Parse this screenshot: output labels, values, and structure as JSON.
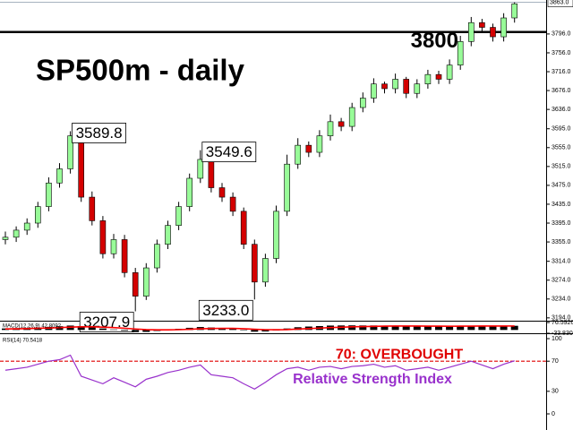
{
  "chart_data": [
    {
      "type": "candlestick",
      "title": "SP500m - daily",
      "open": [
        3360,
        3365,
        3380,
        3395,
        3430,
        3480,
        3510,
        3580,
        3450,
        3400,
        3330,
        3360,
        3290,
        3240,
        3300,
        3350,
        3390,
        3430,
        3490,
        3530,
        3470,
        3450,
        3420,
        3350,
        3270,
        3320,
        3420,
        3520,
        3560,
        3545,
        3580,
        3610,
        3600,
        3640,
        3660,
        3690,
        3680,
        3700,
        3670,
        3690,
        3710,
        3700,
        3730,
        3780,
        3820,
        3810,
        3790,
        3830
      ],
      "high": [
        3377,
        3388,
        3405,
        3440,
        3492,
        3522,
        3589.8,
        3585,
        3462,
        3410,
        3372,
        3370,
        3300,
        3310,
        3360,
        3400,
        3440,
        3500,
        3549.6,
        3535,
        3480,
        3460,
        3428,
        3360,
        3330,
        3432,
        3540,
        3575,
        3568,
        3592,
        3625,
        3618,
        3650,
        3672,
        3702,
        3695,
        3712,
        3705,
        3700,
        3720,
        3718,
        3742,
        3792,
        3832,
        3828,
        3818,
        3840,
        3863
      ],
      "low": [
        3350,
        3355,
        3370,
        3385,
        3420,
        3470,
        3500,
        3440,
        3390,
        3320,
        3320,
        3280,
        3207.9,
        3232,
        3290,
        3340,
        3380,
        3420,
        3480,
        3460,
        3440,
        3410,
        3340,
        3233.0,
        3260,
        3310,
        3410,
        3510,
        3535,
        3535,
        3570,
        3590,
        3590,
        3630,
        3650,
        3670,
        3670,
        3660,
        3660,
        3680,
        3690,
        3690,
        3720,
        3770,
        3800,
        3780,
        3780,
        3820
      ],
      "close": [
        3365,
        3380,
        3395,
        3430,
        3480,
        3510,
        3580,
        3450,
        3400,
        3330,
        3360,
        3290,
        3240,
        3300,
        3350,
        3390,
        3430,
        3490,
        3530,
        3470,
        3450,
        3420,
        3350,
        3270,
        3320,
        3420,
        3520,
        3560,
        3545,
        3580,
        3610,
        3600,
        3640,
        3660,
        3690,
        3680,
        3700,
        3670,
        3690,
        3710,
        3700,
        3730,
        3780,
        3820,
        3810,
        3790,
        3830,
        3860
      ],
      "up_color": "#98fb98",
      "down_color": "#d40000",
      "ylim": [
        3188,
        3868
      ],
      "yticks": [
        {
          "value": 3796,
          "label": "3796.0"
        },
        {
          "value": 3756,
          "label": "3756.0"
        },
        {
          "value": 3716,
          "label": "3716.0"
        },
        {
          "value": 3676,
          "label": "3676.0"
        },
        {
          "value": 3636,
          "label": "3636.0"
        },
        {
          "value": 3595,
          "label": "3595.0"
        },
        {
          "value": 3555,
          "label": "3555.0"
        },
        {
          "value": 3515,
          "label": "3515.0"
        },
        {
          "value": 3475,
          "label": "3475.0"
        },
        {
          "value": 3435,
          "label": "3435.0"
        },
        {
          "value": 3395,
          "label": "3395.0"
        },
        {
          "value": 3355,
          "label": "3355.0"
        },
        {
          "value": 3314,
          "label": "3314.0"
        },
        {
          "value": 3274,
          "label": "3274.0"
        },
        {
          "value": 3234,
          "label": "3234.0"
        },
        {
          "value": 3194,
          "label": "3194.0"
        }
      ],
      "price": {
        "value": 3863,
        "label": "3863.0"
      },
      "levels": [
        {
          "value": 3800,
          "label": "3800"
        }
      ],
      "annotations": [
        {
          "value": 3589.8,
          "label": "3589.8"
        },
        {
          "value": 3549.6,
          "label": "3549.6"
        },
        {
          "value": 3207.9,
          "label": "3207.9"
        },
        {
          "value": 3233.0,
          "label": "3233.0"
        }
      ]
    },
    {
      "type": "macd",
      "title": "MACD(12,26,9) 42.8092",
      "histogram": {
        "color": "#000000",
        "values": [
          15,
          18,
          20,
          25,
          32,
          38,
          45,
          40,
          30,
          15,
          5,
          -8,
          -22,
          -20,
          -10,
          2,
          12,
          22,
          30,
          25,
          20,
          14,
          0,
          -18,
          -15,
          -2,
          15,
          28,
          35,
          40,
          45,
          46,
          47,
          46,
          46,
          44,
          44,
          40,
          38,
          38,
          36,
          37,
          40,
          42,
          41,
          40,
          41,
          42.8092
        ]
      },
      "signal": {
        "color": "#ff0000",
        "values": [
          10,
          12,
          14,
          17,
          20,
          24,
          29,
          32,
          32,
          29,
          24,
          18,
          10,
          4,
          1,
          1,
          3,
          7,
          12,
          15,
          16,
          16,
          13,
          7,
          3,
          2,
          4,
          9,
          14,
          19,
          24,
          28,
          32,
          35,
          37,
          39,
          40,
          40,
          40,
          39,
          39,
          38,
          39,
          39,
          40,
          40,
          40,
          41
        ]
      },
      "ylim": [
        -33.8306,
        76.59265
      ],
      "yticks": [
        -33.8306,
        76.59265
      ]
    },
    {
      "type": "rsi",
      "title": "RSI(14) 70.5418",
      "color": "#9932cc",
      "values": [
        58,
        60,
        62,
        66,
        70,
        72,
        78,
        50,
        45,
        40,
        48,
        42,
        36,
        46,
        50,
        55,
        58,
        62,
        65,
        52,
        50,
        48,
        40,
        33,
        42,
        52,
        60,
        62,
        58,
        62,
        63,
        60,
        63,
        64,
        66,
        62,
        64,
        58,
        60,
        62,
        58,
        62,
        66,
        70,
        65,
        60,
        66,
        70.5418
      ],
      "ylim": [
        0,
        100
      ],
      "yticks": [
        0,
        30,
        70,
        100
      ],
      "levels": [
        {
          "value": 70,
          "label": "70: OVERBOUGHT",
          "color": "#e00000"
        }
      ],
      "subtitle": "Relative Strength Index"
    }
  ]
}
